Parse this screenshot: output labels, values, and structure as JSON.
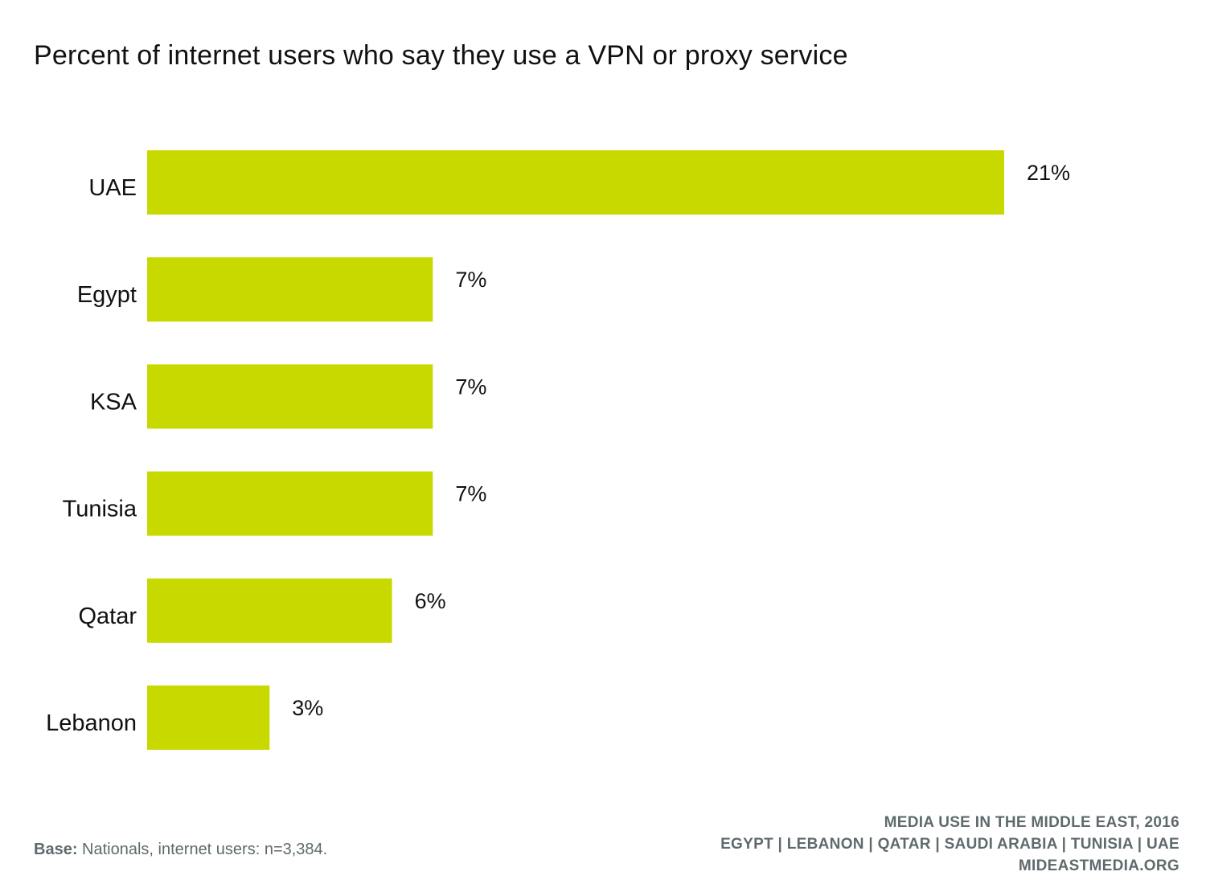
{
  "title": "Percent of internet users who say they use a VPN or proxy service",
  "colors": {
    "bar": "#c8d900",
    "footer_text": "#5f6a6d"
  },
  "chart_data": {
    "type": "bar",
    "orientation": "horizontal",
    "categories": [
      "UAE",
      "Egypt",
      "KSA",
      "Tunisia",
      "Qatar",
      "Lebanon"
    ],
    "values": [
      21,
      7,
      7,
      7,
      6,
      3
    ],
    "value_labels": [
      "21%",
      "7%",
      "7%",
      "7%",
      "6%",
      "3%"
    ],
    "unit": "%",
    "title": "Percent of internet users who say they use a VPN or proxy service",
    "xlabel": "",
    "ylabel": "",
    "xlim": [
      0,
      21
    ],
    "grid": false,
    "legend": "none"
  },
  "footer": {
    "base_label": "Base:",
    "base_text": " Nationals, internet users: n=3,384.",
    "credit_line1": "MEDIA USE IN THE MIDDLE EAST, 2016",
    "credit_line2": "EGYPT | LEBANON | QATAR | SAUDI ARABIA | TUNISIA | UAE",
    "credit_line3": "MIDEASTMEDIA.ORG"
  }
}
